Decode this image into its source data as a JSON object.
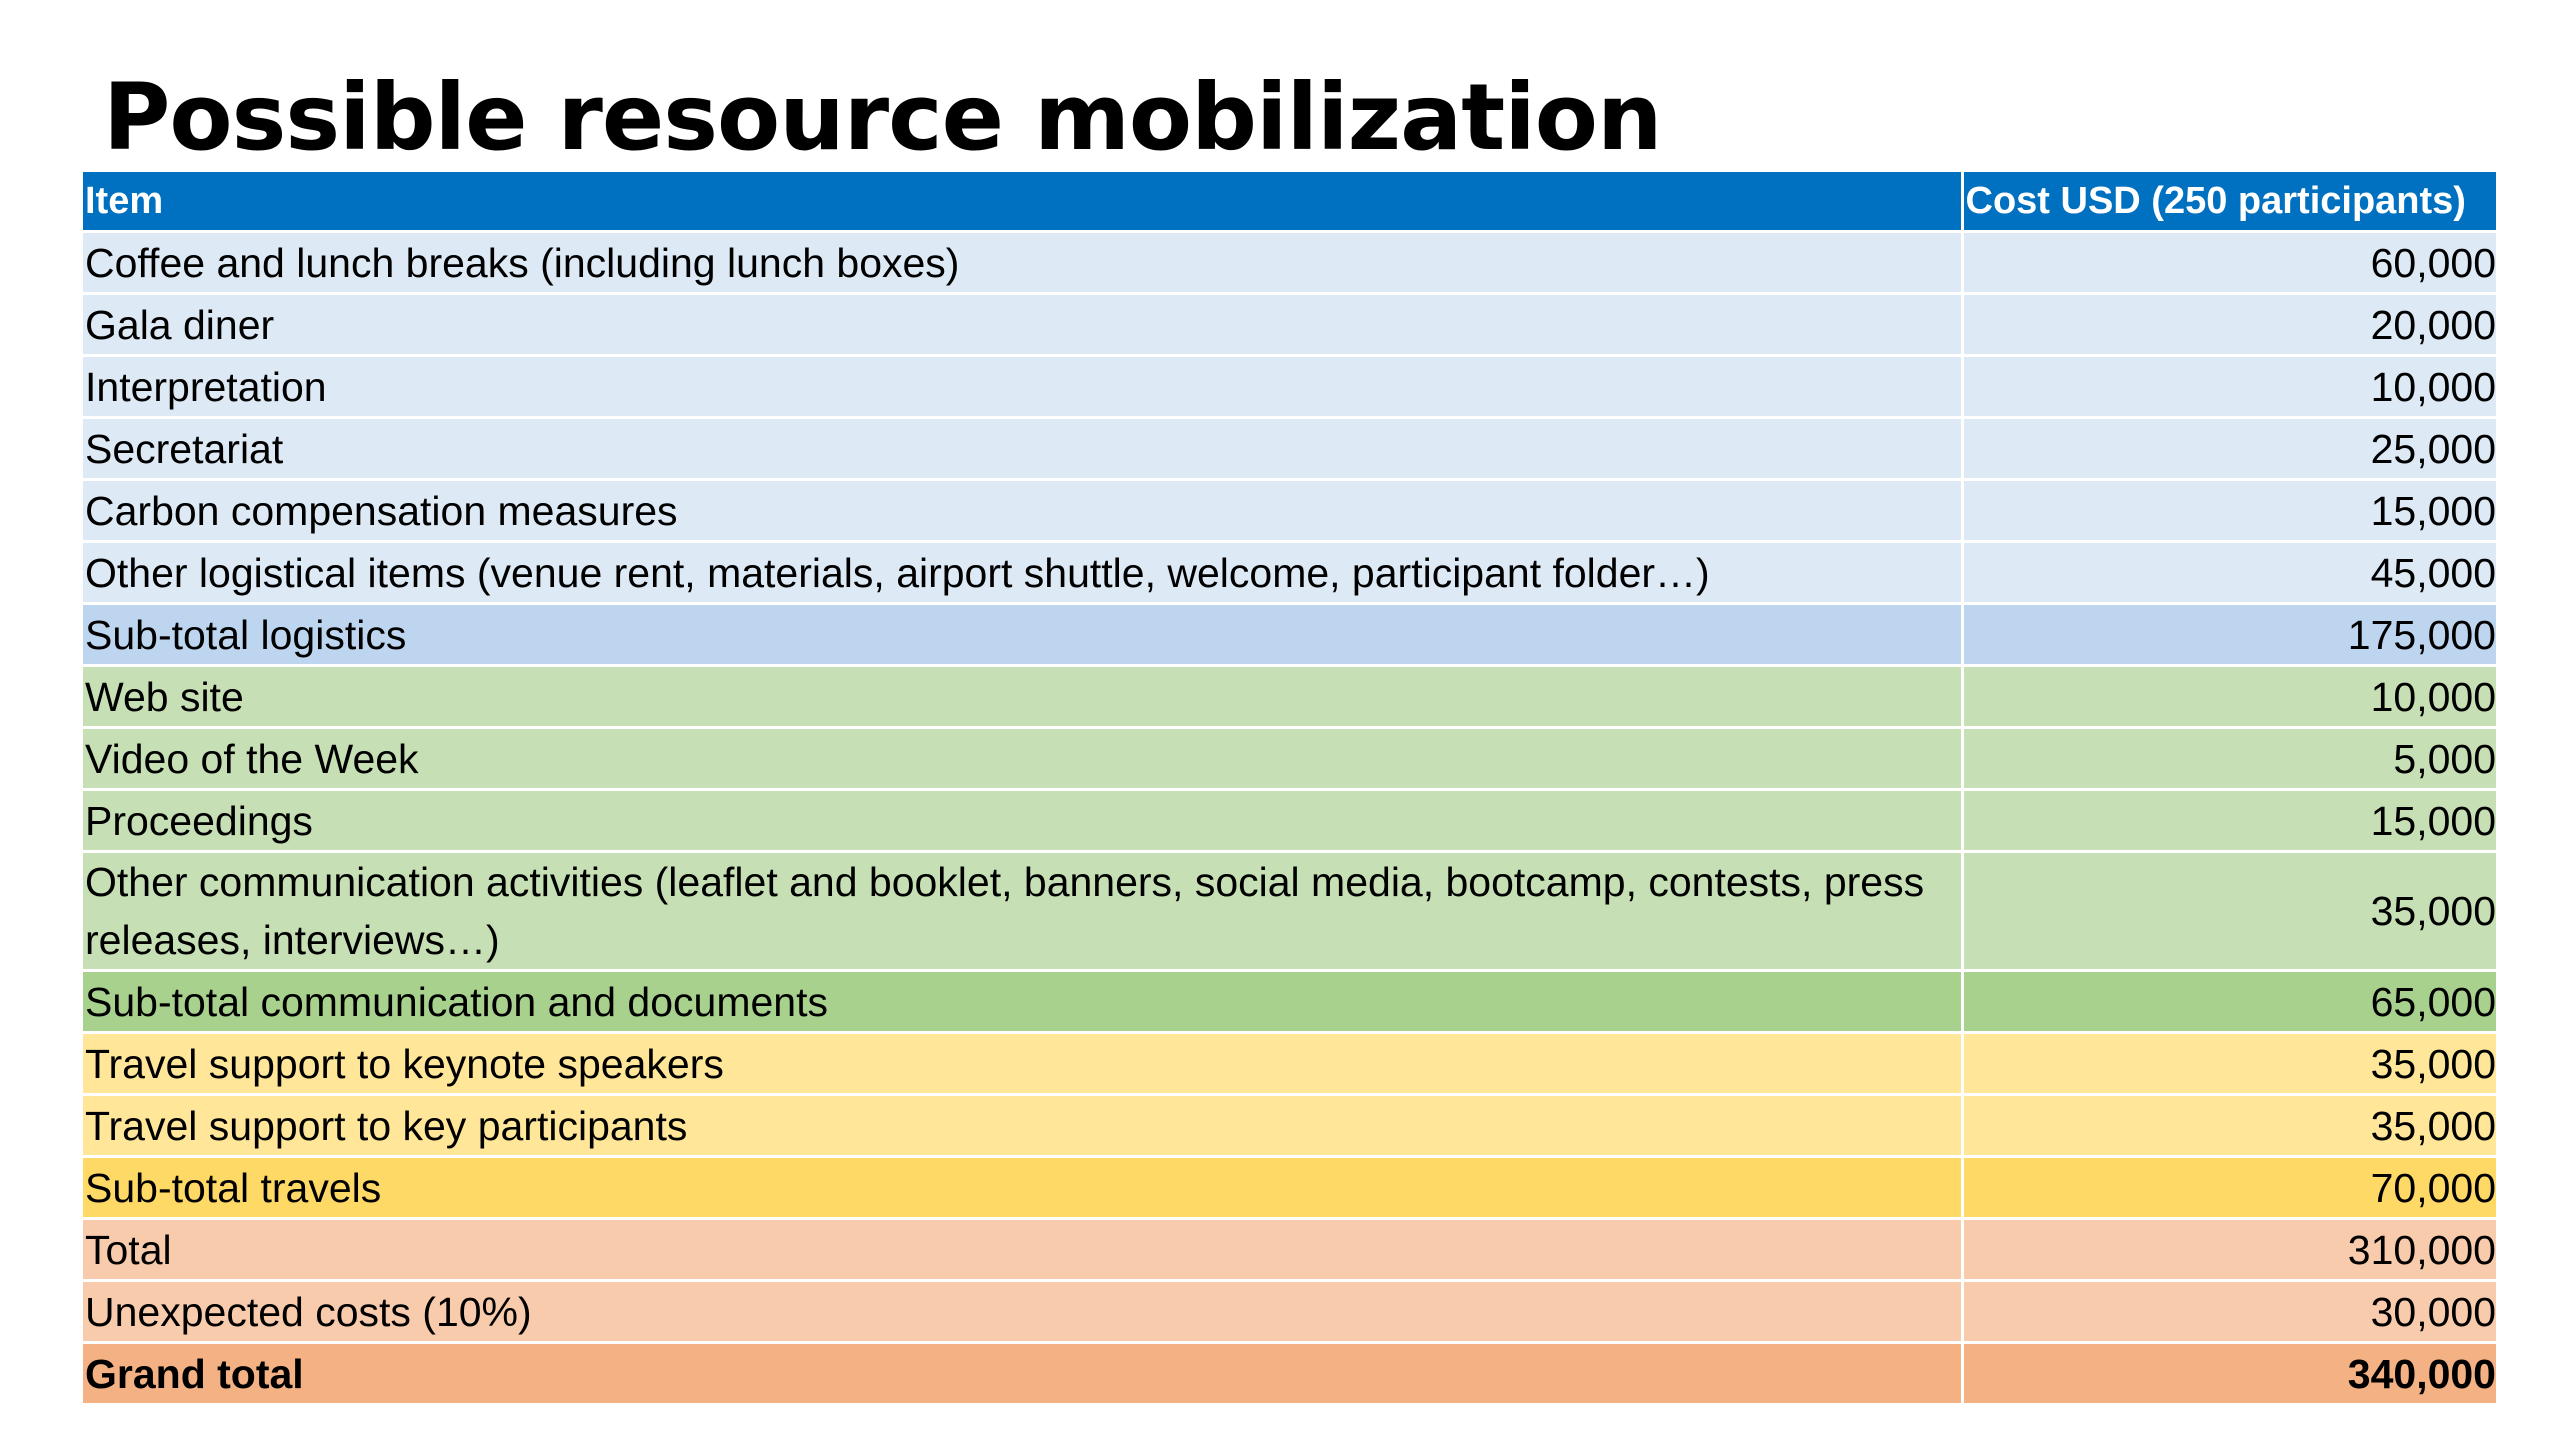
{
  "title": "Possible resource mobilization",
  "table": {
    "headers": [
      "Item",
      "Cost USD (250 participants)"
    ],
    "rows": [
      {
        "item": "Coffee and lunch breaks (including lunch boxes)",
        "cost": "60,000"
      },
      {
        "item": "Gala diner",
        "cost": "20,000"
      },
      {
        "item": "Interpretation",
        "cost": "10,000"
      },
      {
        "item": "Secretariat",
        "cost": "25,000"
      },
      {
        "item": "Carbon compensation measures",
        "cost": "15,000"
      },
      {
        "item": "Other logistical items (venue rent, materials, airport shuttle, welcome, participant folder…)",
        "cost": "45,000"
      },
      {
        "item": "Sub-total logistics",
        "cost": "175,000"
      },
      {
        "item": "Web site",
        "cost": "10,000"
      },
      {
        "item": "Video of the Week",
        "cost": "5,000"
      },
      {
        "item": "Proceedings",
        "cost": "15,000"
      },
      {
        "item": "Other communication activities (leaflet and booklet, banners, social media, bootcamp, contests, press releases, interviews…)",
        "cost": "35,000"
      },
      {
        "item": "Sub-total communication and documents",
        "cost": "65,000"
      },
      {
        "item": "Travel support to keynote speakers",
        "cost": "35,000"
      },
      {
        "item": "Travel support to key participants",
        "cost": "35,000"
      },
      {
        "item": "Sub-total travels",
        "cost": "70,000"
      },
      {
        "item": "Total",
        "cost": "310,000"
      },
      {
        "item": "Unexpected costs (10%)",
        "cost": "30,000"
      },
      {
        "item": "Grand total",
        "cost": "340,000"
      }
    ]
  },
  "colors": {
    "header": "#0070c0",
    "logistics": "#dde9f5",
    "logistics_subtotal": "#bdd5ee",
    "communication": "#c6dfb4",
    "communication_subtotal": "#a9d18e",
    "travel": "#ffe699",
    "travel_subtotal": "#ffd966",
    "total": "#f8cbad",
    "grand_total": "#f4b183"
  }
}
